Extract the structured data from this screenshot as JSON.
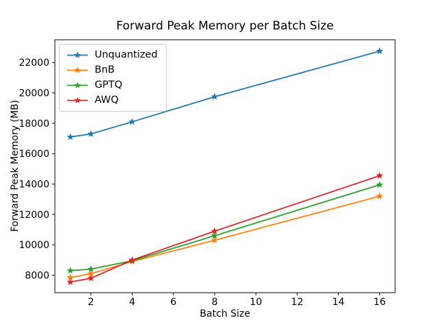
{
  "chart_data": {
    "type": "line",
    "title": "Forward Peak Memory per Batch Size",
    "xlabel": "Batch Size",
    "ylabel": "Forward Peak Memory (MB)",
    "x": [
      1,
      2,
      4,
      8,
      16
    ],
    "series": [
      {
        "name": "Unquantized",
        "color": "#1f77b4",
        "values": [
          17100,
          17300,
          18100,
          19750,
          22750
        ]
      },
      {
        "name": "BnB",
        "color": "#ff7f0e",
        "values": [
          7850,
          8100,
          8900,
          10300,
          13200
        ]
      },
      {
        "name": "GPTQ",
        "color": "#2ca02c",
        "values": [
          8300,
          8400,
          8950,
          10600,
          13950
        ]
      },
      {
        "name": "AWQ",
        "color": "#d62728",
        "values": [
          7550,
          7800,
          9000,
          10900,
          14550
        ]
      }
    ],
    "marker": "star",
    "xticks": [
      2,
      4,
      6,
      8,
      10,
      12,
      14,
      16
    ],
    "yticks": [
      8000,
      10000,
      12000,
      14000,
      16000,
      18000,
      20000,
      22000
    ],
    "xlim": [
      0.25,
      16.75
    ],
    "ylim": [
      6850,
      23500
    ],
    "legend_position": "upper left",
    "grid": false,
    "axis_color": "#000000",
    "background_color": "#ffffff"
  }
}
